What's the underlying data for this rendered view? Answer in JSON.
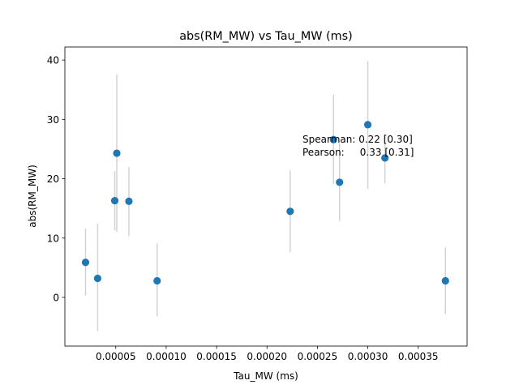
{
  "chart_data": {
    "type": "scatter",
    "title": "abs(RM_MW) vs Tau_MW (ms)",
    "xlabel": "Tau_MW (ms)",
    "ylabel": "abs(RM_MW)",
    "xlim": [
      -5e-07,
      0.0003985
    ],
    "ylim": [
      -8.2,
      42.2
    ],
    "xticks": [
      5e-05,
      0.0001,
      0.00015,
      0.0002,
      0.00025,
      0.0003,
      0.00035
    ],
    "xtick_labels": [
      "0.00005",
      "0.00010",
      "0.00015",
      "0.00020",
      "0.00025",
      "0.00030",
      "0.00035"
    ],
    "yticks": [
      0,
      10,
      20,
      30,
      40
    ],
    "ytick_labels": [
      "0",
      "10",
      "20",
      "30",
      "40"
    ],
    "grid": false,
    "marker_color": "#1f77b4",
    "errorbar_color": "#d3d3d3",
    "points": [
      {
        "x": 2e-05,
        "y": 5.9,
        "yerr_low": 0.3,
        "yerr_high": 11.6
      },
      {
        "x": 3.2e-05,
        "y": 3.2,
        "yerr_low": -5.7,
        "yerr_high": 12.4
      },
      {
        "x": 4.9e-05,
        "y": 16.3,
        "yerr_low": 11.3,
        "yerr_high": 21.3
      },
      {
        "x": 5.1e-05,
        "y": 24.3,
        "yerr_low": 11.0,
        "yerr_high": 37.6
      },
      {
        "x": 6.3e-05,
        "y": 16.2,
        "yerr_low": 10.3,
        "yerr_high": 22.0
      },
      {
        "x": 9.1e-05,
        "y": 2.8,
        "yerr_low": -3.2,
        "yerr_high": 9.1
      },
      {
        "x": 0.000223,
        "y": 14.5,
        "yerr_low": 7.6,
        "yerr_high": 21.4
      },
      {
        "x": 0.000266,
        "y": 26.6,
        "yerr_low": 19.1,
        "yerr_high": 34.2
      },
      {
        "x": 0.000272,
        "y": 19.4,
        "yerr_low": 12.9,
        "yerr_high": 26.0
      },
      {
        "x": 0.0003,
        "y": 29.1,
        "yerr_low": 18.3,
        "yerr_high": 39.8
      },
      {
        "x": 0.000317,
        "y": 23.5,
        "yerr_low": 19.2,
        "yerr_high": 27.6
      },
      {
        "x": 0.000377,
        "y": 2.8,
        "yerr_low": -2.8,
        "yerr_high": 8.4
      }
    ],
    "annotations": [
      "Spearman: 0.22 [0.30]",
      "Pearson:     0.33 [0.31]"
    ]
  }
}
